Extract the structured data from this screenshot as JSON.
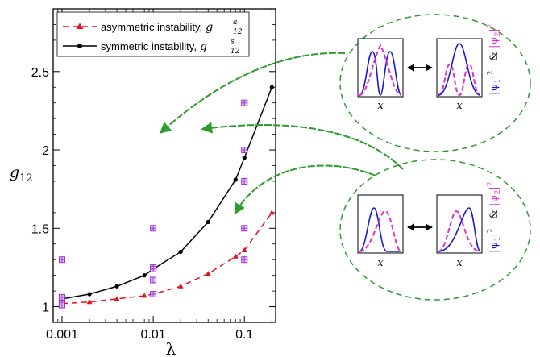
{
  "chart_data": {
    "type": "line",
    "x_scale": "log",
    "xlim": [
      0.0008,
      0.22
    ],
    "ylim": [
      0.9,
      2.9
    ],
    "xlabel": "λ",
    "ylabel": {
      "main": "g",
      "sub": "12"
    },
    "xticks": [
      0.001,
      0.01,
      0.1
    ],
    "xtick_labels": [
      "0.001",
      "0.01",
      "0.1"
    ],
    "yticks": [
      1,
      1.5,
      2,
      2.5
    ],
    "ytick_labels": [
      "1",
      "1.5",
      "2",
      "2.5"
    ],
    "legend_placement": "top-left",
    "series": [
      {
        "key": "asym",
        "legend_text": "asymmetric instability,",
        "sym_main": "g",
        "sym_sub": "12",
        "sym_sup": "a",
        "color": "#e8101a",
        "style": "dashed",
        "marker": "triangle",
        "x": [
          0.001,
          0.002,
          0.004,
          0.008,
          0.01,
          0.02,
          0.04,
          0.08,
          0.1,
          0.2
        ],
        "y": [
          1.02,
          1.03,
          1.05,
          1.07,
          1.08,
          1.13,
          1.21,
          1.32,
          1.36,
          1.6
        ]
      },
      {
        "key": "sym",
        "legend_text": "symmetric instability,",
        "sym_main": "g",
        "sym_sub": "12",
        "sym_sup": "s",
        "color": "#000000",
        "style": "solid",
        "marker": "circle",
        "x": [
          0.001,
          0.002,
          0.004,
          0.008,
          0.01,
          0.02,
          0.04,
          0.08,
          0.1,
          0.2
        ],
        "y": [
          1.05,
          1.08,
          1.13,
          1.2,
          1.24,
          1.35,
          1.54,
          1.81,
          1.95,
          2.4
        ]
      }
    ],
    "scatter_points": {
      "color": "#9b30d9",
      "marker": "boxed-plus",
      "x": [
        0.001,
        0.001,
        0.001,
        0.001,
        0.001,
        0.01,
        0.01,
        0.01,
        0.01,
        0.01,
        0.1,
        0.1,
        0.1,
        0.1,
        0.1
      ],
      "y": [
        1.02,
        1.04,
        1.06,
        1.3,
        1.01,
        1.08,
        1.17,
        1.25,
        1.5,
        1.24,
        1.3,
        1.8,
        2.0,
        2.3,
        1.5
      ]
    }
  },
  "insets": {
    "symmetric_group": {
      "border_color": "#2e9b2e",
      "x_label": "x",
      "side_label_1": "|ψ",
      "side_label_1_sub": "1",
      "side_label_amp": "&",
      "side_label_2": "|ψ",
      "side_label_2_sub": "2",
      "side_label_sup": "2"
    },
    "asymmetric_group": {
      "border_color": "#2e9b2e",
      "x_label": "x",
      "side_label_1": "|ψ",
      "side_label_1_sub": "1",
      "side_label_amp": "&",
      "side_label_2": "|ψ",
      "side_label_2_sub": "2",
      "side_label_sup": "2"
    },
    "colors": {
      "psi1": "#1a1acc",
      "psi2": "#e030d0",
      "arrow": "#2e9b2e"
    }
  }
}
